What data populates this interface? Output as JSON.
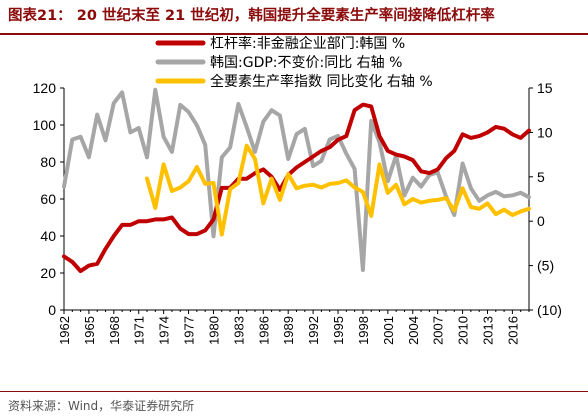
{
  "header": {
    "title": "图表21：  20 世纪末至 21 世纪初，韩国提升全要素生产率间接降低杠杆率"
  },
  "footer": {
    "source": "资料来源：Wind，华泰证券研究所"
  },
  "colors": {
    "leverage": "#c00000",
    "gdp": "#a6a6a6",
    "tfp": "#ffc000",
    "title": "#8b0a0a"
  },
  "chart_data": {
    "type": "line",
    "x_tick_labels": [
      "1962",
      "1965",
      "1968",
      "1971",
      "1974",
      "1977",
      "1980",
      "1983",
      "1986",
      "1989",
      "1992",
      "1995",
      "1998",
      "2001",
      "2004",
      "2007",
      "2010",
      "2013",
      "2016"
    ],
    "x_range": [
      1962,
      2018
    ],
    "left_axis": {
      "range": [
        0,
        120
      ],
      "tick_labels": [
        "0",
        "20",
        "40",
        "60",
        "80",
        "100",
        "120"
      ]
    },
    "right_axis": {
      "range": [
        -10,
        15
      ],
      "tick_labels": [
        "(10)",
        "(5)",
        "0",
        "5",
        "10",
        "15"
      ]
    },
    "legend_placement": "top-center",
    "grid": false,
    "series": [
      {
        "name": "杠杆率:非金融企业部门:韩国 %",
        "axis": "left",
        "color": "#c00000",
        "x": [
          1962,
          1963,
          1964,
          1965,
          1966,
          1967,
          1968,
          1969,
          1970,
          1971,
          1972,
          1973,
          1974,
          1975,
          1976,
          1977,
          1978,
          1979,
          1980,
          1981,
          1982,
          1983,
          1984,
          1985,
          1986,
          1987,
          1988,
          1989,
          1990,
          1991,
          1992,
          1993,
          1994,
          1995,
          1996,
          1997,
          1998,
          1999,
          2000,
          2001,
          2002,
          2003,
          2004,
          2005,
          2006,
          2007,
          2008,
          2009,
          2010,
          2011,
          2012,
          2013,
          2014,
          2015,
          2016,
          2017,
          2018
        ],
        "y": [
          29,
          26,
          21,
          24,
          25,
          33,
          40,
          46,
          46,
          48,
          48,
          49,
          49,
          50,
          44,
          41,
          41,
          43,
          49,
          66,
          66,
          71,
          71,
          74,
          76,
          72,
          65,
          73,
          77,
          80,
          83,
          86,
          88,
          92,
          94,
          108,
          111,
          110,
          94,
          86,
          84,
          83,
          81,
          75,
          74,
          76,
          82,
          86,
          95,
          93,
          94,
          96,
          99,
          98,
          95,
          93,
          97
        ]
      },
      {
        "name": "韩国:GDP:不变价:同比 右轴 %",
        "axis": "right",
        "color": "#a6a6a6",
        "x": [
          1962,
          1963,
          1964,
          1965,
          1966,
          1967,
          1968,
          1969,
          1970,
          1971,
          1972,
          1973,
          1974,
          1975,
          1976,
          1977,
          1978,
          1979,
          1980,
          1981,
          1982,
          1983,
          1984,
          1985,
          1986,
          1987,
          1988,
          1989,
          1990,
          1991,
          1992,
          1993,
          1994,
          1995,
          1996,
          1997,
          1998,
          1999,
          2000,
          2001,
          2002,
          2003,
          2004,
          2005,
          2006,
          2007,
          2008,
          2009,
          2010,
          2011,
          2012,
          2013,
          2014,
          2015,
          2016,
          2017,
          2018
        ],
        "y": [
          3.9,
          9.2,
          9.5,
          7.2,
          12.0,
          9.1,
          13.3,
          14.5,
          10.0,
          10.5,
          7.2,
          14.8,
          9.5,
          7.8,
          13.1,
          12.3,
          10.8,
          8.6,
          -1.7,
          7.2,
          8.3,
          13.2,
          10.6,
          7.8,
          11.2,
          12.5,
          11.9,
          7.0,
          9.8,
          10.4,
          6.2,
          6.8,
          9.2,
          9.6,
          7.6,
          5.9,
          -5.5,
          11.3,
          8.9,
          4.5,
          7.4,
          2.9,
          4.9,
          3.9,
          5.2,
          5.5,
          2.8,
          0.7,
          6.5,
          3.7,
          2.3,
          2.9,
          3.3,
          2.8,
          2.9,
          3.2,
          2.7
        ]
      },
      {
        "name": "全要素生产率指数 同比变化 右轴 %",
        "axis": "right",
        "color": "#ffc000",
        "x": [
          1972,
          1973,
          1974,
          1975,
          1976,
          1977,
          1978,
          1979,
          1980,
          1981,
          1982,
          1983,
          1984,
          1985,
          1986,
          1987,
          1988,
          1989,
          1990,
          1991,
          1992,
          1993,
          1994,
          1995,
          1996,
          1997,
          1998,
          1999,
          2000,
          2001,
          2002,
          2003,
          2004,
          2005,
          2006,
          2007,
          2008,
          2009,
          2010,
          2011,
          2012,
          2013,
          2014,
          2015,
          2016,
          2017,
          2018
        ],
        "y": [
          4.8,
          1.5,
          6.4,
          3.4,
          3.8,
          4.5,
          6.1,
          4.2,
          4.3,
          -1.5,
          3.6,
          4.3,
          8.5,
          7.0,
          2.0,
          4.8,
          2.4,
          5.3,
          3.7,
          4.0,
          4.1,
          3.8,
          4.2,
          4.3,
          4.6,
          3.8,
          3.3,
          0.6,
          6.4,
          3.2,
          4.1,
          1.9,
          2.5,
          2.1,
          2.3,
          2.4,
          2.6,
          1.2,
          3.7,
          1.6,
          1.4,
          2.0,
          0.8,
          1.3,
          0.7,
          1.1,
          1.4
        ]
      }
    ]
  }
}
